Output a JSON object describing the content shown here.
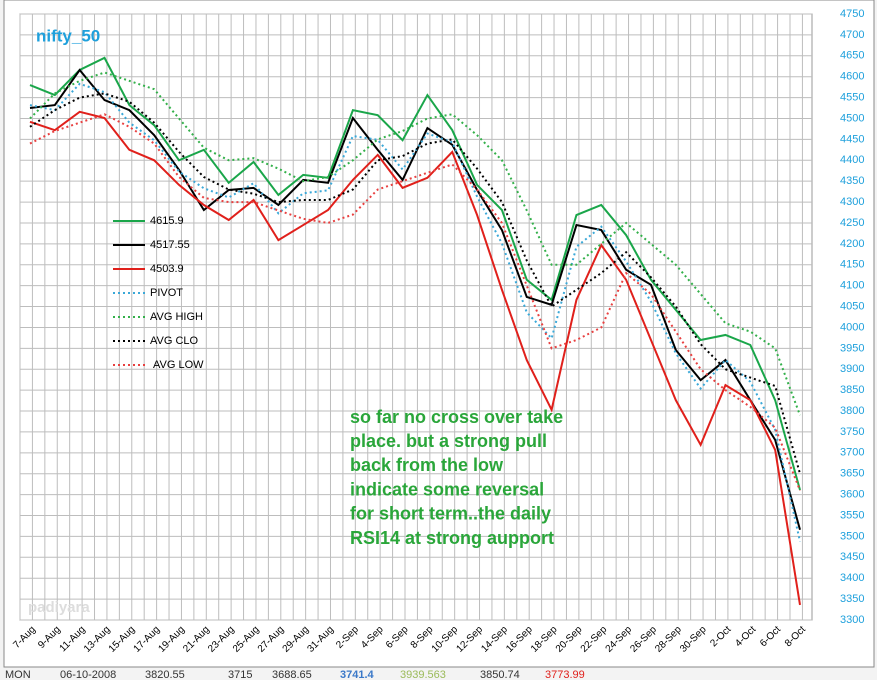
{
  "chart_data": {
    "type": "line",
    "title": "nifty_50",
    "watermark": "padiyara",
    "annotation": [
      "so far no cross over take",
      "place. but a strong pull",
      "back from the low",
      "indicate some reversal",
      "for short term..the daily",
      "RSI14 at strong aupport"
    ],
    "categories": [
      "7-Aug",
      "9-Aug",
      "11-Aug",
      "13-Aug",
      "15-Aug",
      "17-Aug",
      "19-Aug",
      "21-Aug",
      "23-Aug",
      "25-Aug",
      "27-Aug",
      "29-Aug",
      "31-Aug",
      "2-Sep",
      "4-Sep",
      "6-Sep",
      "8-Sep",
      "10-Sep",
      "12-Sep",
      "14-Sep",
      "16-Sep",
      "18-Sep",
      "20-Sep",
      "22-Sep",
      "24-Sep",
      "26-Sep",
      "28-Sep",
      "30-Sep",
      "2-Oct",
      "4-Oct",
      "6-Oct",
      "8-Oct"
    ],
    "series": [
      {
        "name": "4615.9",
        "color": "#1aa64a",
        "dash": false,
        "values": [
          4580,
          4556,
          4616,
          4645,
          4532,
          4484,
          4400,
          4425,
          4346,
          4396,
          4317,
          4365,
          4358,
          4520,
          4508,
          4448,
          4556,
          4472,
          4341,
          4281,
          4114,
          4066,
          4269,
          4293,
          4221,
          4114,
          4042,
          3970,
          3982,
          3958,
          3826,
          3611
        ]
      },
      {
        "name": "4517.55",
        "color": "#000000",
        "dash": false,
        "values": [
          4525,
          4532,
          4616,
          4544,
          4520,
          4460,
          4377,
          4281,
          4329,
          4334,
          4293,
          4353,
          4346,
          4501,
          4425,
          4353,
          4477,
          4437,
          4329,
          4233,
          4073,
          4054,
          4245,
          4233,
          4138,
          4102,
          3946,
          3874,
          3922,
          3826,
          3731,
          3516
        ]
      },
      {
        "name": "4503.9",
        "color": "#e0201b",
        "dash": false,
        "values": [
          4492,
          4472,
          4516,
          4501,
          4425,
          4400,
          4341,
          4293,
          4257,
          4305,
          4209,
          4245,
          4281,
          4353,
          4413,
          4334,
          4358,
          4420,
          4269,
          4090,
          3922,
          3803,
          4066,
          4197,
          4114,
          3970,
          3826,
          3719,
          3862,
          3826,
          3707,
          3336
        ]
      },
      {
        "name": "PIVOT",
        "color": "#3aa8d8",
        "dash": true,
        "values": [
          4532,
          4520,
          4583,
          4563,
          4490,
          4448,
          4373,
          4333,
          4311,
          4345,
          4273,
          4321,
          4328,
          4458,
          4449,
          4378,
          4464,
          4443,
          4313,
          4201,
          4036,
          3974,
          4193,
          4241,
          4158,
          4062,
          3938,
          3854,
          3922,
          3870,
          3755,
          3488
        ]
      },
      {
        "name": "AVG HIGH",
        "color": "#33b04a",
        "dash": true,
        "values": [
          4500,
          4560,
          4590,
          4610,
          4590,
          4570,
          4500,
          4430,
          4400,
          4405,
          4380,
          4350,
          4360,
          4400,
          4450,
          4470,
          4500,
          4510,
          4460,
          4400,
          4280,
          4150,
          4150,
          4200,
          4250,
          4200,
          4150,
          4080,
          4010,
          3990,
          3950,
          3790
        ]
      },
      {
        "name": "AVG CLO",
        "color": "#000000",
        "dash": true,
        "values": [
          4480,
          4520,
          4550,
          4560,
          4540,
          4490,
          4420,
          4360,
          4330,
          4320,
          4300,
          4305,
          4305,
          4330,
          4400,
          4410,
          4440,
          4450,
          4380,
          4300,
          4160,
          4050,
          4090,
          4130,
          4180,
          4120,
          4050,
          3960,
          3900,
          3880,
          3860,
          3650
        ]
      },
      {
        "name": "AVG LOW",
        "color": "#e84040",
        "dash": true,
        "values": [
          4440,
          4470,
          4490,
          4510,
          4480,
          4440,
          4360,
          4310,
          4300,
          4300,
          4280,
          4260,
          4250,
          4270,
          4330,
          4350,
          4370,
          4390,
          4330,
          4250,
          4100,
          3950,
          3970,
          4000,
          4130,
          4080,
          3990,
          3900,
          3850,
          3810,
          3760,
          3610
        ]
      }
    ],
    "ylim": [
      3300,
      4750
    ],
    "yticks": [
      3300,
      3350,
      3400,
      3450,
      3500,
      3550,
      3600,
      3650,
      3700,
      3750,
      3800,
      3850,
      3900,
      3950,
      4000,
      4050,
      4100,
      4150,
      4200,
      4250,
      4300,
      4350,
      4400,
      4450,
      4500,
      4550,
      4600,
      4650,
      4700,
      4750
    ],
    "grid": true,
    "footer_row": [
      "MON",
      "06-10-2008",
      "3820.55",
      "3715",
      "3688.65",
      "3741.4",
      "3939.563",
      "3850.74",
      "3773.99"
    ]
  }
}
